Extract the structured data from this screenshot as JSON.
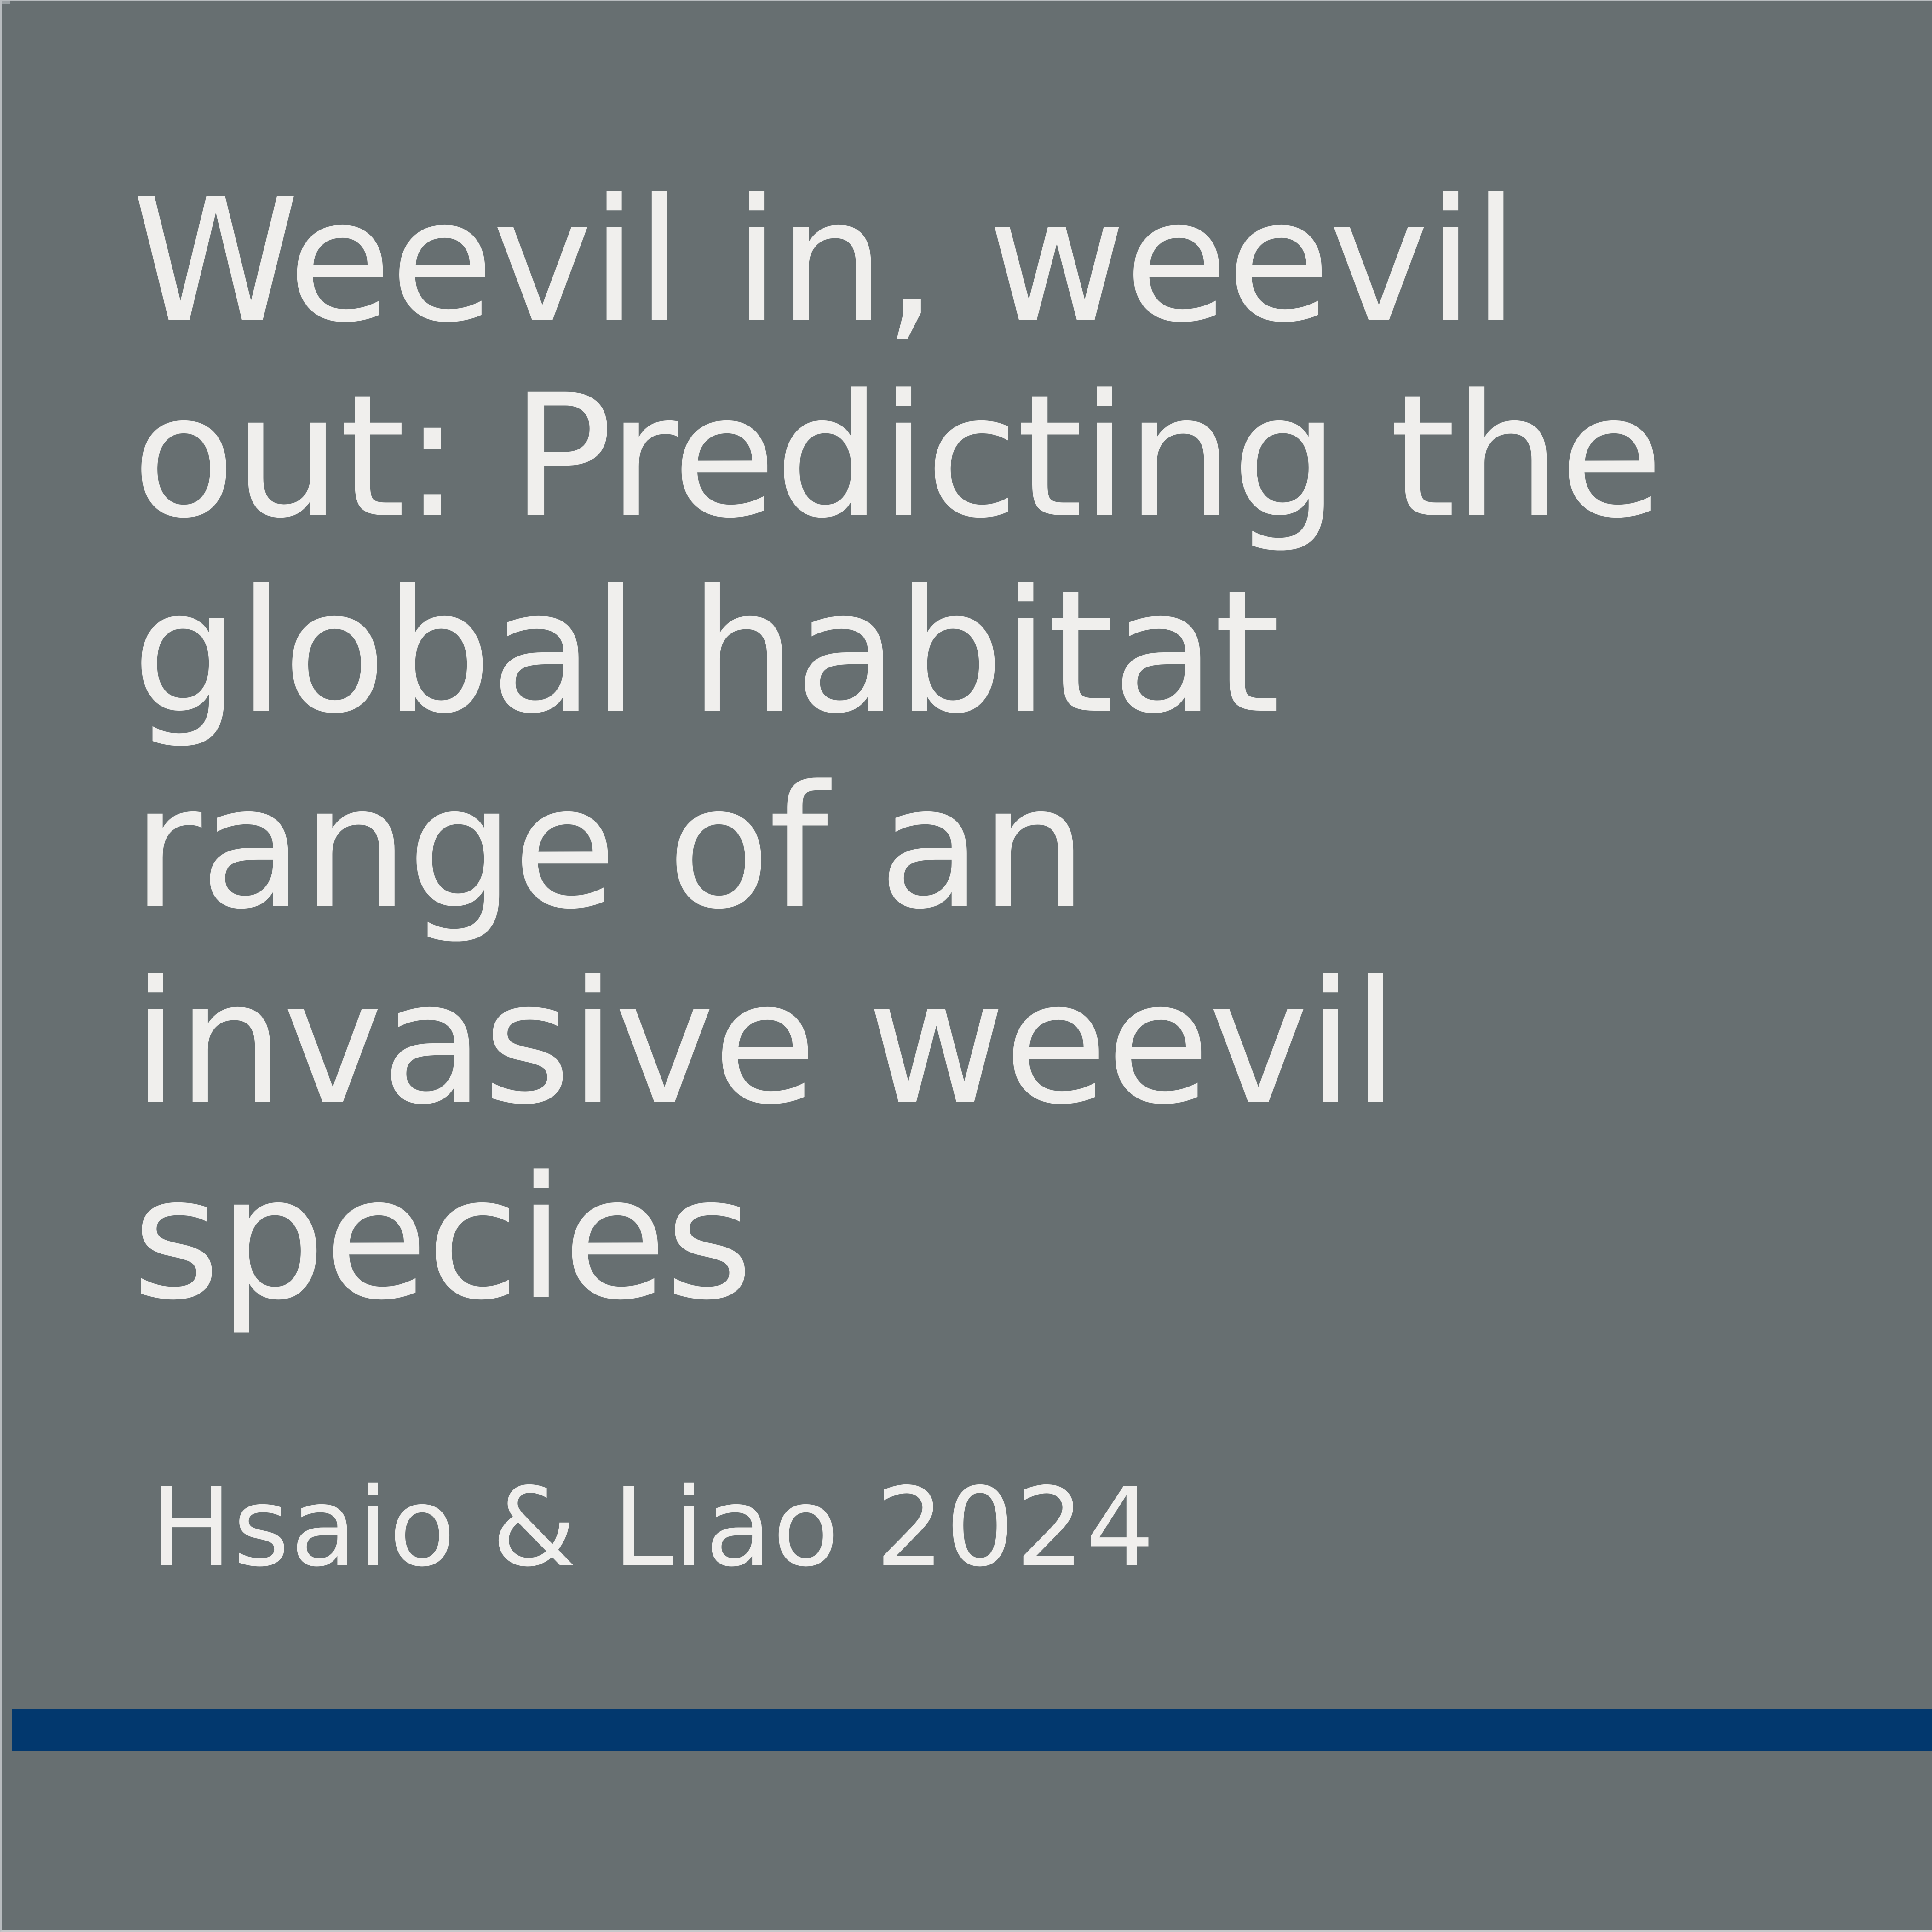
{
  "slide": {
    "title": "Weevil in, weevil out: Predicting the global habitat range of an invasive weevil species",
    "authors": "Hsaio & Liao 2024"
  },
  "colors": {
    "background": "#676f71",
    "text": "#f0efed",
    "accent_bar": "#02386e"
  }
}
